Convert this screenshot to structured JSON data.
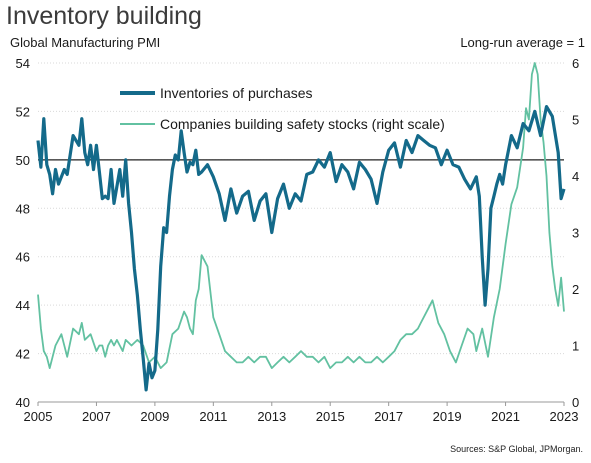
{
  "header": {
    "title": "Inventory building",
    "left_axis_title": "Global Manufacturing PMI",
    "right_axis_title": "Long-run average = 1",
    "source": "Sources: S&P Global, JPMorgan."
  },
  "colors": {
    "inventories": "#146a8a",
    "safety": "#62c1a1",
    "reference": "#222222",
    "grid": "#d9d9d9"
  },
  "chart_data": {
    "type": "line",
    "title": "Inventory building",
    "ylabel": "Global Manufacturing PMI",
    "y2label": "Long-run average = 1",
    "ylim": [
      40,
      54
    ],
    "y2lim": [
      0,
      6
    ],
    "xlim": [
      2005,
      2023
    ],
    "x_ticks": [
      "2005",
      "2007",
      "2009",
      "2011",
      "2013",
      "2015",
      "2017",
      "2019",
      "2021",
      "2023"
    ],
    "y_ticks": [
      "40",
      "42",
      "44",
      "46",
      "48",
      "50",
      "52",
      "54"
    ],
    "y2_ticks": [
      "0",
      "1",
      "2",
      "3",
      "4",
      "5",
      "6"
    ],
    "reference_line": 50,
    "grid": "horizontal",
    "legend_position": "top-center",
    "series": [
      {
        "name": "Inventories of purchases",
        "axis": "left",
        "x": [
          2005.0,
          2005.1,
          2005.2,
          2005.3,
          2005.4,
          2005.5,
          2005.6,
          2005.7,
          2005.8,
          2005.9,
          2006.0,
          2006.2,
          2006.4,
          2006.5,
          2006.6,
          2006.7,
          2006.8,
          2006.9,
          2007.0,
          2007.1,
          2007.2,
          2007.3,
          2007.4,
          2007.5,
          2007.6,
          2007.7,
          2007.8,
          2007.9,
          2008.0,
          2008.1,
          2008.2,
          2008.3,
          2008.4,
          2008.5,
          2008.6,
          2008.7,
          2008.8,
          2008.9,
          2009.0,
          2009.1,
          2009.2,
          2009.3,
          2009.4,
          2009.5,
          2009.6,
          2009.7,
          2009.8,
          2009.9,
          2010.0,
          2010.1,
          2010.2,
          2010.3,
          2010.4,
          2010.5,
          2010.6,
          2010.8,
          2011.0,
          2011.2,
          2011.4,
          2011.6,
          2011.8,
          2012.0,
          2012.2,
          2012.4,
          2012.6,
          2012.8,
          2013.0,
          2013.2,
          2013.4,
          2013.6,
          2013.8,
          2014.0,
          2014.2,
          2014.4,
          2014.6,
          2014.8,
          2015.0,
          2015.2,
          2015.4,
          2015.6,
          2015.8,
          2016.0,
          2016.2,
          2016.4,
          2016.6,
          2016.8,
          2017.0,
          2017.2,
          2017.4,
          2017.6,
          2017.8,
          2018.0,
          2018.2,
          2018.4,
          2018.6,
          2018.8,
          2019.0,
          2019.2,
          2019.4,
          2019.6,
          2019.8,
          2020.0,
          2020.1,
          2020.2,
          2020.3,
          2020.4,
          2020.5,
          2020.6,
          2020.7,
          2020.8,
          2020.9,
          2021.0,
          2021.2,
          2021.4,
          2021.6,
          2021.8,
          2022.0,
          2022.2,
          2022.4,
          2022.6,
          2022.8,
          2022.9,
          2023.0
        ],
        "values": [
          50.8,
          49.7,
          51.7,
          49.8,
          49.4,
          48.6,
          49.6,
          49.0,
          49.3,
          49.6,
          49.4,
          51.0,
          50.6,
          51.7,
          50.3,
          49.8,
          50.6,
          49.6,
          50.6,
          49.5,
          48.4,
          48.5,
          48.4,
          49.6,
          48.2,
          48.9,
          49.6,
          48.5,
          50.0,
          48.2,
          47.0,
          45.5,
          44.4,
          43.0,
          41.8,
          40.5,
          41.6,
          41.0,
          41.3,
          43.0,
          45.6,
          47.2,
          47.0,
          48.5,
          49.6,
          50.2,
          50.0,
          51.2,
          50.3,
          49.5,
          49.9,
          49.8,
          50.4,
          49.4,
          49.5,
          49.8,
          49.3,
          48.6,
          47.5,
          48.8,
          47.8,
          48.5,
          48.7,
          47.5,
          48.3,
          48.6,
          47.0,
          48.4,
          49.0,
          48.0,
          48.6,
          48.3,
          49.4,
          49.5,
          50.0,
          49.7,
          50.3,
          49.1,
          49.8,
          49.5,
          48.8,
          49.9,
          49.6,
          49.2,
          48.2,
          49.5,
          50.4,
          50.7,
          49.7,
          50.8,
          50.3,
          51.0,
          50.8,
          50.6,
          50.5,
          49.8,
          50.4,
          49.8,
          49.7,
          49.2,
          48.8,
          49.3,
          48.5,
          46.0,
          44.0,
          45.5,
          48.0,
          48.5,
          49.0,
          49.4,
          49.0,
          49.8,
          51.0,
          50.5,
          51.5,
          51.2,
          52.0,
          51.0,
          52.2,
          51.8,
          50.3,
          48.4,
          48.8
        ]
      },
      {
        "name": "Companies building safety stocks (right scale)",
        "axis": "right",
        "x": [
          2005.0,
          2005.1,
          2005.2,
          2005.3,
          2005.4,
          2005.5,
          2005.6,
          2005.8,
          2006.0,
          2006.2,
          2006.4,
          2006.5,
          2006.6,
          2006.8,
          2007.0,
          2007.1,
          2007.2,
          2007.3,
          2007.4,
          2007.5,
          2007.6,
          2007.7,
          2007.8,
          2007.9,
          2008.0,
          2008.2,
          2008.4,
          2008.6,
          2008.8,
          2009.0,
          2009.2,
          2009.4,
          2009.6,
          2009.8,
          2010.0,
          2010.1,
          2010.2,
          2010.3,
          2010.4,
          2010.5,
          2010.6,
          2010.8,
          2011.0,
          2011.2,
          2011.4,
          2011.6,
          2011.8,
          2012.0,
          2012.2,
          2012.4,
          2012.6,
          2012.8,
          2013.0,
          2013.2,
          2013.4,
          2013.6,
          2013.8,
          2014.0,
          2014.2,
          2014.4,
          2014.6,
          2014.8,
          2015.0,
          2015.2,
          2015.4,
          2015.6,
          2015.8,
          2016.0,
          2016.2,
          2016.4,
          2016.6,
          2016.8,
          2017.0,
          2017.2,
          2017.4,
          2017.6,
          2017.8,
          2018.0,
          2018.1,
          2018.3,
          2018.5,
          2018.7,
          2018.9,
          2019.1,
          2019.3,
          2019.5,
          2019.7,
          2019.9,
          2020.0,
          2020.2,
          2020.4,
          2020.6,
          2020.8,
          2021.0,
          2021.2,
          2021.4,
          2021.6,
          2021.7,
          2021.8,
          2021.9,
          2022.0,
          2022.1,
          2022.2,
          2022.3,
          2022.4,
          2022.5,
          2022.6,
          2022.7,
          2022.8,
          2022.9,
          2023.0
        ],
        "values": [
          1.9,
          1.3,
          0.9,
          0.8,
          0.6,
          0.8,
          1.0,
          1.2,
          0.8,
          1.3,
          1.2,
          1.4,
          1.1,
          1.2,
          0.9,
          1.0,
          1.0,
          0.8,
          1.0,
          1.1,
          1.0,
          1.1,
          1.0,
          0.9,
          1.1,
          1.0,
          1.1,
          1.0,
          0.7,
          0.8,
          0.6,
          0.7,
          1.2,
          1.3,
          1.6,
          1.5,
          1.3,
          1.2,
          1.8,
          2.0,
          2.6,
          2.4,
          1.5,
          1.2,
          0.9,
          0.8,
          0.7,
          0.7,
          0.8,
          0.7,
          0.8,
          0.8,
          0.6,
          0.7,
          0.8,
          0.7,
          0.8,
          0.9,
          0.8,
          0.8,
          0.7,
          0.8,
          0.6,
          0.7,
          0.7,
          0.8,
          0.7,
          0.8,
          0.7,
          0.7,
          0.8,
          0.7,
          0.8,
          0.9,
          1.1,
          1.2,
          1.2,
          1.3,
          1.4,
          1.6,
          1.8,
          1.4,
          1.2,
          0.9,
          0.7,
          1.0,
          1.3,
          1.2,
          0.9,
          1.3,
          0.8,
          1.5,
          2.0,
          2.8,
          3.5,
          3.8,
          4.5,
          5.2,
          5.0,
          5.8,
          6.1,
          5.8,
          5.0,
          4.6,
          4.0,
          3.0,
          2.4,
          2.0,
          1.7,
          2.2,
          1.6
        ]
      }
    ]
  }
}
